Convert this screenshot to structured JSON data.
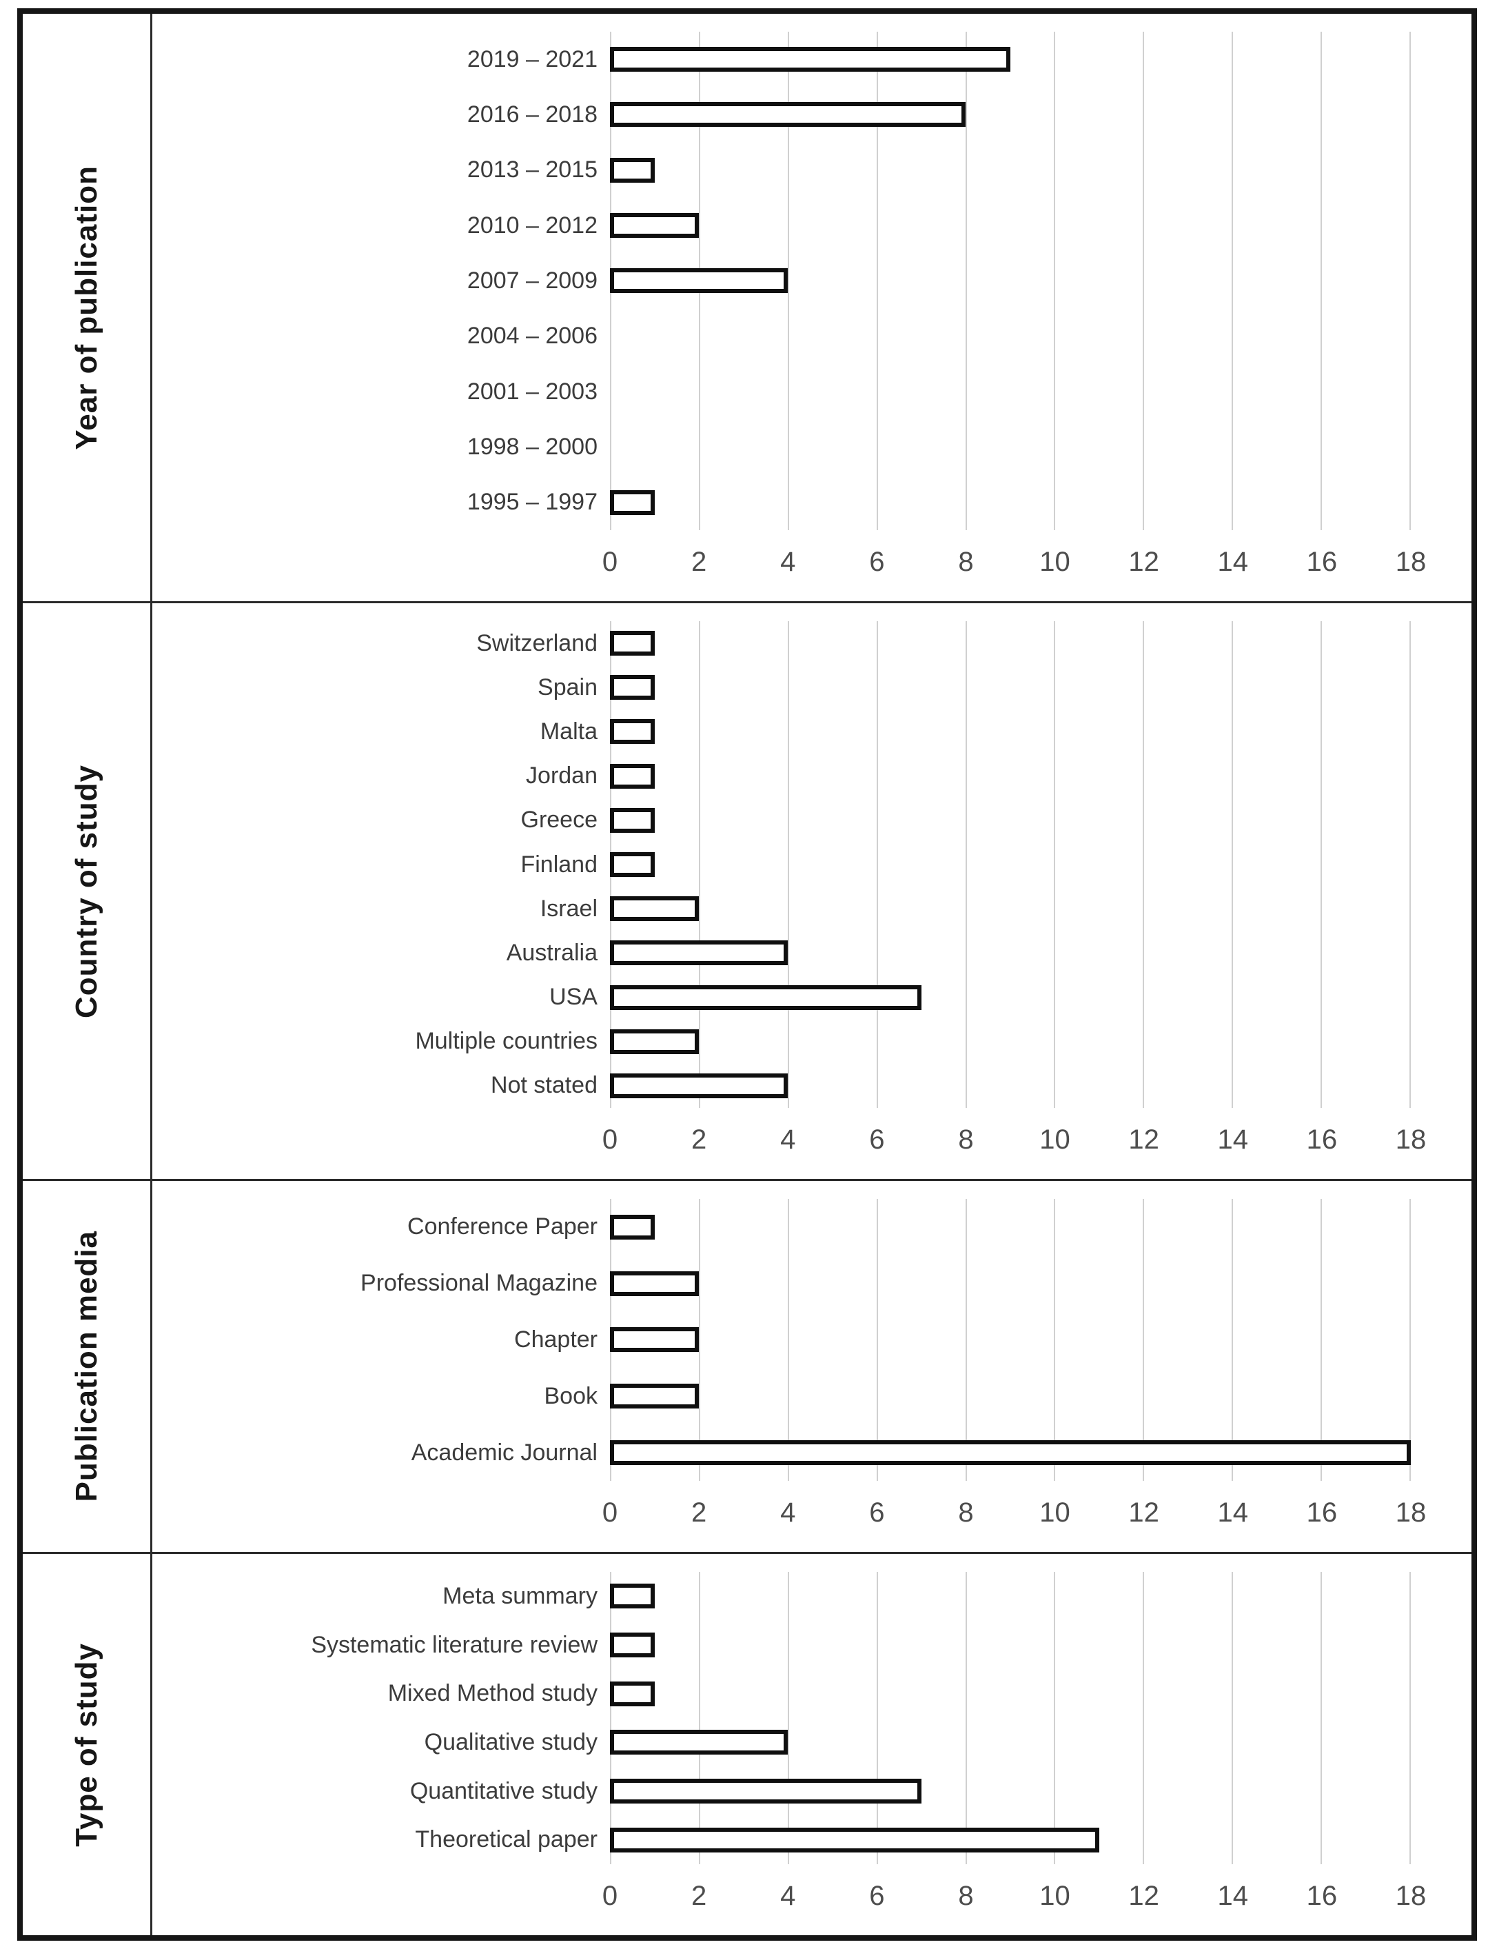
{
  "figure": {
    "xlim": [
      0,
      18
    ],
    "xticks": [
      0,
      2,
      4,
      6,
      8,
      10,
      12,
      14,
      16,
      18
    ],
    "colors": {
      "bar_fill": "#ffffff",
      "bar_border": "#0f0f0f",
      "gridline": "#d0d0d0",
      "tick_label": "#4d4d4d",
      "category_label": "#3c3c3c",
      "panel_label": "#161616",
      "frame": "#161616"
    }
  },
  "chart_data": [
    {
      "type": "bar",
      "orientation": "horizontal",
      "panel_label": "Year of publication",
      "categories": [
        "2019 – 2021",
        "2016 – 2018",
        "2013 – 2015",
        "2010 – 2012",
        "2007 – 2009",
        "2004 – 2006",
        "2001 – 2003",
        "1998 – 2000",
        "1995 – 1997"
      ],
      "values": [
        9,
        8,
        1,
        2,
        4,
        0,
        0,
        0,
        1
      ],
      "xlim": [
        0,
        18
      ],
      "xticks": [
        0,
        2,
        4,
        6,
        8,
        10,
        12,
        14,
        16,
        18
      ],
      "gridlines": true,
      "legend": null
    },
    {
      "type": "bar",
      "orientation": "horizontal",
      "panel_label": "Country of study",
      "categories": [
        "Switzerland",
        "Spain",
        "Malta",
        "Jordan",
        "Greece",
        "Finland",
        "Israel",
        "Australia",
        "USA",
        "Multiple countries",
        "Not stated"
      ],
      "values": [
        1,
        1,
        1,
        1,
        1,
        1,
        2,
        4,
        7,
        2,
        4
      ],
      "xlim": [
        0,
        18
      ],
      "xticks": [
        0,
        2,
        4,
        6,
        8,
        10,
        12,
        14,
        16,
        18
      ],
      "gridlines": true,
      "legend": null
    },
    {
      "type": "bar",
      "orientation": "horizontal",
      "panel_label": "Publication media",
      "categories": [
        "Conference Paper",
        "Professional Magazine",
        "Chapter",
        "Book",
        "Academic Journal"
      ],
      "values": [
        1,
        2,
        2,
        2,
        18
      ],
      "xlim": [
        0,
        18
      ],
      "xticks": [
        0,
        2,
        4,
        6,
        8,
        10,
        12,
        14,
        16,
        18
      ],
      "gridlines": true,
      "legend": null
    },
    {
      "type": "bar",
      "orientation": "horizontal",
      "panel_label": "Type of study",
      "categories": [
        "Meta summary",
        "Systematic literature review",
        "Mixed Method study",
        "Qualitative study",
        "Quantitative study",
        "Theoretical paper"
      ],
      "values": [
        1,
        1,
        1,
        4,
        7,
        11
      ],
      "xlim": [
        0,
        18
      ],
      "xticks": [
        0,
        2,
        4,
        6,
        8,
        10,
        12,
        14,
        16,
        18
      ],
      "gridlines": true,
      "legend": null
    }
  ]
}
